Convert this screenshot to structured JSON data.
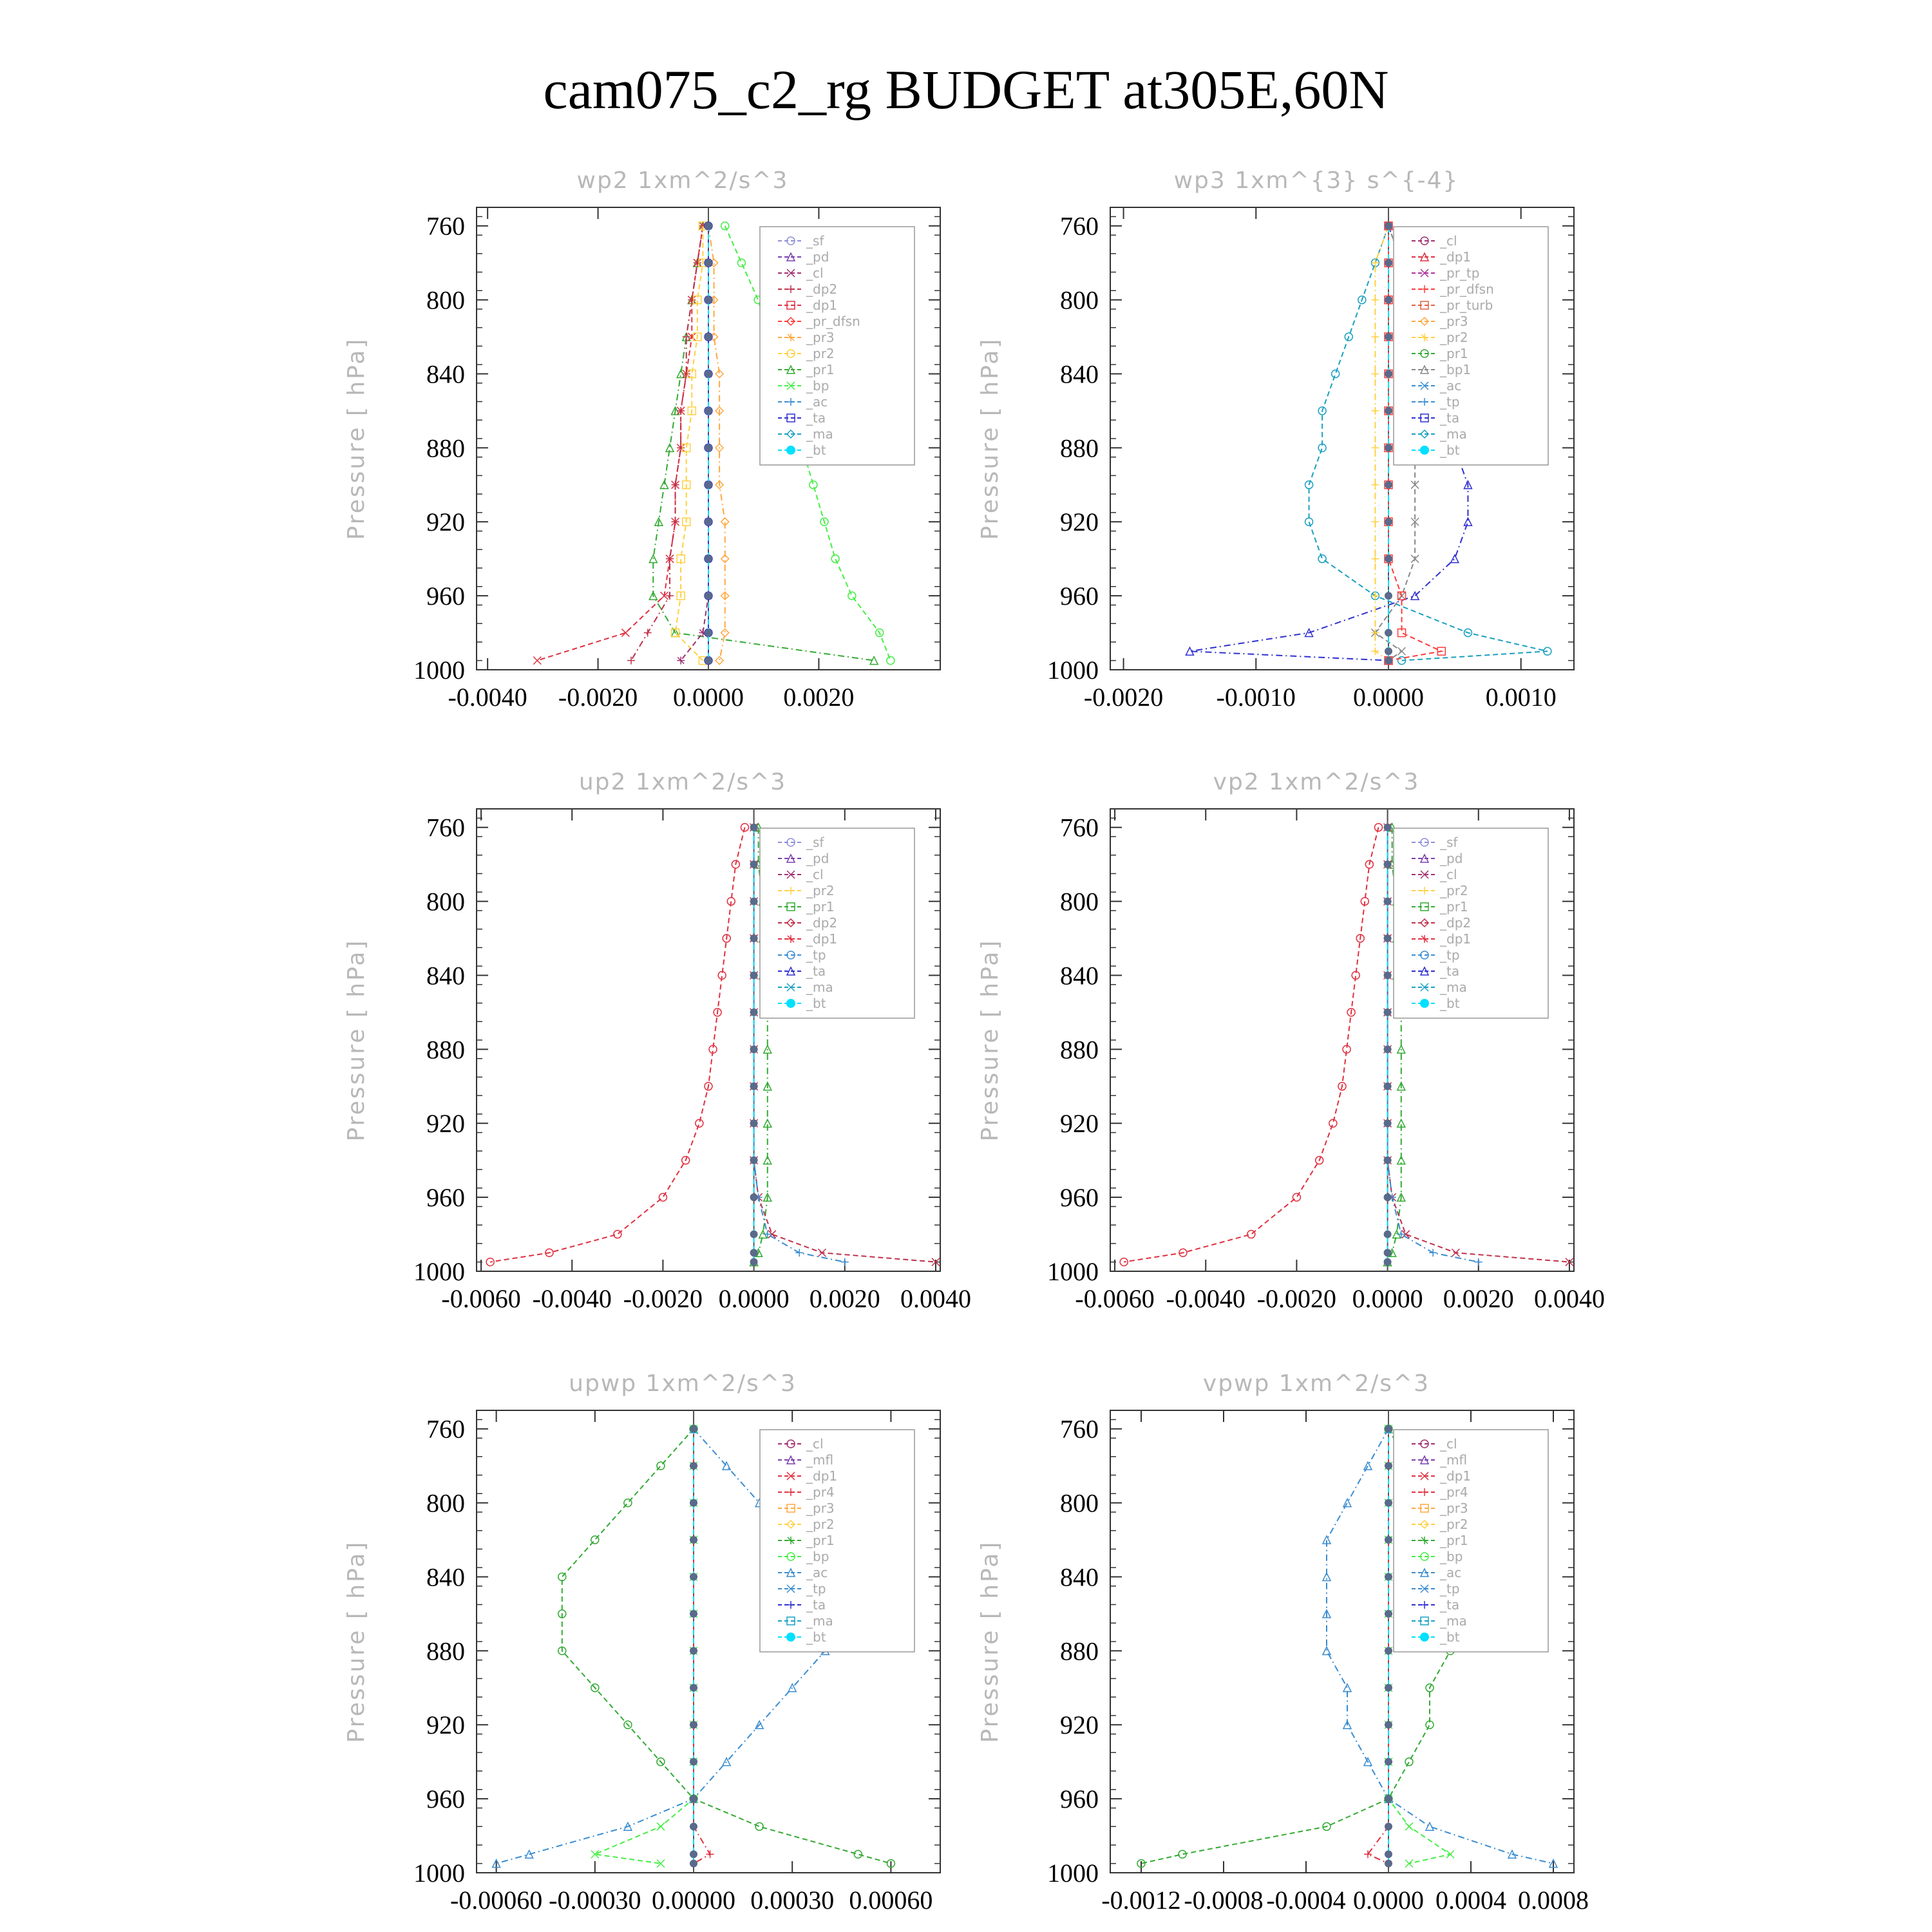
{
  "title": "cam075_c2_rg  BUDGET at305E,60N",
  "colors": {
    "_sf": "#8f8fd8",
    "_pd": "#7b3fb0",
    "_cl": "#a03070",
    "_dp2": "#c0304a",
    "_dp1": "#e03040",
    "_pr_dfsn": "#ff3b3b",
    "_pr3": "#ffa840",
    "_pr2": "#ffd040",
    "_pr1": "#33aa33",
    "_bp": "#44ee44",
    "_ac": "#3a8cd0",
    "_ta": "#3030d0",
    "_ma": "#1aa0c0",
    "_bt": "#00e0ff",
    "_pr_tp": "#b0309a",
    "_pr_turb": "#e06040",
    "_tp": "#3a8cd0",
    "_mfl": "#7b3fb0",
    "_pr4": "#e03040"
  },
  "chart_data": [
    {
      "type": "line",
      "title": "wp2   1xm^2/s^3",
      "ylabel": "Pressure [ hPa]",
      "ylim": [
        1000,
        750
      ],
      "yticks": [
        "760",
        "800",
        "840",
        "880",
        "920",
        "960",
        "1000"
      ],
      "xlim": [
        -0.0042,
        0.0042
      ],
      "xticks": [
        "-0.0040",
        "-0.0020",
        "0.0000",
        "0.0020"
      ],
      "xtick_values": [
        -0.004,
        -0.002,
        0.0,
        0.002
      ],
      "legend": [
        "_sf",
        "_pd",
        "_cl",
        "_dp2",
        "_dp1",
        "_pr_dfsn",
        "_pr3",
        "_pr2",
        "_pr1",
        "_bp",
        "_ac",
        "_ta",
        "_ma",
        "_bt"
      ],
      "legend_position": "top-right",
      "pressure": [
        760,
        780,
        800,
        820,
        840,
        860,
        880,
        900,
        920,
        940,
        960,
        980,
        995
      ],
      "series": [
        {
          "name": "_bp",
          "values": [
            0.0003,
            0.0006,
            0.0009,
            0.0011,
            0.0013,
            0.0015,
            0.0017,
            0.0019,
            0.0021,
            0.0023,
            0.0026,
            0.0031,
            0.0033
          ]
        },
        {
          "name": "_pr1",
          "values": [
            -0.0001,
            -0.0002,
            -0.0003,
            -0.0004,
            -0.0005,
            -0.0006,
            -0.0007,
            -0.0008,
            -0.0009,
            -0.001,
            -0.001,
            -0.0006,
            0.003
          ]
        },
        {
          "name": "_dp1",
          "values": [
            -0.0001,
            -0.0002,
            -0.0003,
            -0.0003,
            -0.0004,
            -0.0005,
            -0.0005,
            -0.0006,
            -0.0006,
            -0.0007,
            -0.0008,
            -0.0015,
            -0.0031
          ]
        },
        {
          "name": "_dp2",
          "values": [
            -0.0001,
            -0.0002,
            -0.0003,
            -0.0004,
            -0.0004,
            -0.0005,
            -0.0005,
            -0.0006,
            -0.0006,
            -0.0007,
            -0.0007,
            -0.0011,
            -0.0014
          ]
        },
        {
          "name": "_pr2",
          "values": [
            -0.0001,
            -0.0001,
            -0.0002,
            -0.0002,
            -0.0003,
            -0.0003,
            -0.0004,
            -0.0004,
            -0.0004,
            -0.0005,
            -0.0005,
            -0.0006,
            -0.0001
          ]
        },
        {
          "name": "_pr3",
          "values": [
            0.0,
            0.0001,
            0.0001,
            0.0001,
            0.0002,
            0.0002,
            0.0002,
            0.0002,
            0.0003,
            0.0003,
            0.0003,
            0.0003,
            0.0002
          ]
        },
        {
          "name": "_cl",
          "values": [
            0.0,
            0.0,
            0.0,
            0.0,
            0.0,
            0.0,
            0.0,
            0.0,
            0.0,
            0.0,
            0.0,
            -0.0001,
            -0.0005
          ]
        },
        {
          "name": "_ta",
          "values": [
            0.0,
            0.0,
            0.0,
            0.0,
            0.0,
            0.0,
            0.0,
            0.0,
            0.0,
            0.0,
            0.0,
            0.0,
            0.0
          ]
        },
        {
          "name": "_bt",
          "values": [
            0.0,
            0.0,
            0.0,
            0.0,
            0.0,
            0.0,
            0.0,
            0.0,
            0.0,
            0.0,
            0.0,
            0.0,
            0.0
          ]
        }
      ]
    },
    {
      "type": "line",
      "title": "wp3   1xm^{3} s^{-4}",
      "ylabel": "Pressure [ hPa]",
      "ylim": [
        1000,
        750
      ],
      "yticks": [
        "760",
        "800",
        "840",
        "880",
        "920",
        "960",
        "1000"
      ],
      "xlim": [
        -0.0021,
        0.0014
      ],
      "xticks": [
        "-0.0020",
        "-0.0010",
        "0.0000",
        "0.0010"
      ],
      "xtick_values": [
        -0.002,
        -0.001,
        0.0,
        0.001
      ],
      "legend": [
        "_cl",
        "_dp1",
        "_pr_tp",
        "_pr_dfsn",
        "_pr_turb",
        "_pr3",
        "_pr2",
        "_pr1",
        "_bp1",
        "_ac",
        "_tp",
        "_ta",
        "_ma",
        "_bt"
      ],
      "legend_position": "top-right",
      "pressure": [
        760,
        780,
        800,
        820,
        840,
        860,
        880,
        900,
        920,
        940,
        960,
        980,
        990,
        995
      ],
      "series": [
        {
          "name": "_ma",
          "values": [
            0.0,
            -0.0001,
            -0.0002,
            -0.0003,
            -0.0004,
            -0.0005,
            -0.0005,
            -0.0006,
            -0.0006,
            -0.0005,
            -0.0001,
            0.0006,
            0.0012,
            0.0001
          ]
        },
        {
          "name": "_ta",
          "values": [
            0.0,
            0.0001,
            0.0002,
            0.0003,
            0.0004,
            0.0005,
            0.0005,
            0.0006,
            0.0006,
            0.0005,
            0.0002,
            -0.0006,
            -0.0015,
            0.0
          ]
        },
        {
          "name": "_bp1",
          "values": [
            0.0,
            0.0001,
            0.0001,
            0.0001,
            0.0001,
            0.0002,
            0.0002,
            0.0002,
            0.0002,
            0.0002,
            0.0001,
            -0.0001,
            0.0001,
            0.0
          ]
        },
        {
          "name": "_pr2",
          "values": [
            0.0,
            -0.0001,
            -0.0001,
            -0.0001,
            -0.0001,
            -0.0001,
            -0.0001,
            -0.0001,
            -0.0001,
            -0.0001,
            -0.0001,
            -0.0001,
            -0.0001,
            0.0
          ]
        },
        {
          "name": "_pr_dfsn",
          "values": [
            0.0,
            0.0,
            0.0,
            0.0,
            0.0,
            0.0,
            0.0,
            0.0,
            0.0,
            0.0,
            0.0001,
            0.0001,
            0.0004,
            0.0
          ]
        },
        {
          "name": "_bt",
          "values": [
            0.0,
            0.0,
            0.0,
            0.0,
            0.0,
            0.0,
            0.0,
            0.0,
            0.0,
            0.0,
            0.0,
            0.0,
            0.0,
            0.0
          ]
        }
      ]
    },
    {
      "type": "line",
      "title": "up2   1xm^2/s^3",
      "ylabel": "Pressure [ hPa]",
      "ylim": [
        1000,
        750
      ],
      "yticks": [
        "760",
        "800",
        "840",
        "880",
        "920",
        "960",
        "1000"
      ],
      "xlim": [
        -0.0061,
        0.0041
      ],
      "xticks": [
        "-0.0060",
        "-0.0040",
        "-0.0020",
        "0.0000",
        "0.0020",
        "0.0040"
      ],
      "xtick_values": [
        -0.006,
        -0.004,
        -0.002,
        0.0,
        0.002,
        0.004
      ],
      "legend": [
        "_sf",
        "_pd",
        "_cl",
        "_pr2",
        "_pr1",
        "_dp2",
        "_dp1",
        "_tp",
        "_ta",
        "_ma",
        "_bt"
      ],
      "legend_position": "top-right",
      "pressure": [
        760,
        780,
        800,
        820,
        840,
        860,
        880,
        900,
        920,
        940,
        960,
        980,
        990,
        995
      ],
      "series": [
        {
          "name": "_dp1",
          "values": [
            -0.0002,
            -0.0004,
            -0.0005,
            -0.0006,
            -0.0007,
            -0.0008,
            -0.0009,
            -0.001,
            -0.0012,
            -0.0015,
            -0.002,
            -0.003,
            -0.0045,
            -0.0058
          ]
        },
        {
          "name": "_pr1",
          "values": [
            0.0001,
            0.0001,
            0.0002,
            0.0002,
            0.0002,
            0.0003,
            0.0003,
            0.0003,
            0.0003,
            0.0003,
            0.0003,
            0.0002,
            0.0001,
            0.0
          ]
        },
        {
          "name": "_dp2",
          "values": [
            0.0,
            0.0,
            0.0,
            0.0,
            0.0,
            0.0,
            0.0,
            0.0,
            0.0,
            0.0,
            0.0001,
            0.0004,
            0.0015,
            0.004
          ]
        },
        {
          "name": "_tp",
          "values": [
            0.0,
            0.0,
            0.0,
            0.0,
            0.0,
            0.0,
            0.0,
            0.0,
            0.0,
            0.0,
            0.0001,
            0.0003,
            0.001,
            0.002
          ]
        },
        {
          "name": "_bt",
          "values": [
            0.0,
            0.0,
            0.0,
            0.0,
            0.0,
            0.0,
            0.0,
            0.0,
            0.0,
            0.0,
            0.0,
            0.0,
            0.0,
            0.0
          ]
        }
      ]
    },
    {
      "type": "line",
      "title": "vp2   1xm^2/s^3",
      "ylabel": "Pressure [ hPa]",
      "ylim": [
        1000,
        750
      ],
      "yticks": [
        "760",
        "800",
        "840",
        "880",
        "920",
        "960",
        "1000"
      ],
      "xlim": [
        -0.0061,
        0.0041
      ],
      "xticks": [
        "-0.0060",
        "-0.0040",
        "-0.0020",
        "0.0000",
        "0.0020",
        "0.0040"
      ],
      "xtick_values": [
        -0.006,
        -0.004,
        -0.002,
        0.0,
        0.002,
        0.004
      ],
      "legend": [
        "_sf",
        "_pd",
        "_cl",
        "_pr2",
        "_pr1",
        "_dp2",
        "_dp1",
        "_tp",
        "_ta",
        "_ma",
        "_bt"
      ],
      "legend_position": "top-right",
      "pressure": [
        760,
        780,
        800,
        820,
        840,
        860,
        880,
        900,
        920,
        940,
        960,
        980,
        990,
        995
      ],
      "series": [
        {
          "name": "_dp1",
          "values": [
            -0.0002,
            -0.0004,
            -0.0005,
            -0.0006,
            -0.0007,
            -0.0008,
            -0.0009,
            -0.001,
            -0.0012,
            -0.0015,
            -0.002,
            -0.003,
            -0.0045,
            -0.0058
          ]
        },
        {
          "name": "_pr1",
          "values": [
            0.0001,
            0.0001,
            0.0002,
            0.0002,
            0.0002,
            0.0003,
            0.0003,
            0.0003,
            0.0003,
            0.0003,
            0.0003,
            0.0002,
            0.0001,
            0.0
          ]
        },
        {
          "name": "_dp2",
          "values": [
            0.0,
            0.0,
            0.0,
            0.0,
            0.0,
            0.0,
            0.0,
            0.0,
            0.0,
            0.0,
            0.0001,
            0.0004,
            0.0015,
            0.004
          ]
        },
        {
          "name": "_tp",
          "values": [
            0.0,
            0.0,
            0.0,
            0.0,
            0.0,
            0.0,
            0.0,
            0.0,
            0.0,
            0.0,
            0.0001,
            0.0003,
            0.001,
            0.002
          ]
        },
        {
          "name": "_bt",
          "values": [
            0.0,
            0.0,
            0.0,
            0.0,
            0.0,
            0.0,
            0.0,
            0.0,
            0.0,
            0.0,
            0.0,
            0.0,
            0.0,
            0.0
          ]
        }
      ]
    },
    {
      "type": "line",
      "title": "upwp   1xm^2/s^3",
      "ylabel": "Pressure [ hPa]",
      "ylim": [
        1000,
        750
      ],
      "yticks": [
        "760",
        "800",
        "840",
        "880",
        "920",
        "960",
        "1000"
      ],
      "xlim": [
        -0.00066,
        0.00075
      ],
      "xticks": [
        "-0.00060",
        "-0.00030",
        "0.00000",
        "0.00030",
        "0.00060"
      ],
      "xtick_values": [
        -0.0006,
        -0.0003,
        0.0,
        0.0003,
        0.0006
      ],
      "legend": [
        "_cl",
        "_mfl",
        "_dp1",
        "_pr4",
        "_pr3",
        "_pr2",
        "_pr1",
        "_bp",
        "_ac",
        "_tp",
        "_ta",
        "_ma",
        "_bt"
      ],
      "legend_position": "top-right",
      "pressure": [
        760,
        780,
        800,
        820,
        840,
        860,
        880,
        900,
        920,
        940,
        960,
        975,
        990,
        995
      ],
      "series": [
        {
          "name": "_pr1",
          "values": [
            0.0,
            -0.0001,
            -0.0002,
            -0.0003,
            -0.0004,
            -0.0004,
            -0.0004,
            -0.0003,
            -0.0002,
            -0.0001,
            0.0,
            0.0002,
            0.0005,
            0.0006
          ]
        },
        {
          "name": "_tp",
          "values": [
            0.0,
            0.0001,
            0.0002,
            0.0003,
            0.0004,
            0.0004,
            0.0004,
            0.0003,
            0.0002,
            0.0001,
            0.0,
            -0.0002,
            -0.0005,
            -0.0006
          ]
        },
        {
          "name": "_bp",
          "values": [
            0.0,
            0.0,
            0.0,
            0.0,
            0.0,
            0.0,
            0.0,
            0.0,
            0.0,
            0.0,
            0.0,
            -0.0001,
            -0.0003,
            -0.0001
          ]
        },
        {
          "name": "_dp1",
          "values": [
            0.0,
            0.0,
            0.0,
            0.0,
            0.0,
            0.0,
            0.0,
            0.0,
            0.0,
            0.0,
            0.0,
            0.0,
            5e-05,
            0.0
          ]
        },
        {
          "name": "_bt",
          "values": [
            0.0,
            0.0,
            0.0,
            0.0,
            0.0,
            0.0,
            0.0,
            0.0,
            0.0,
            0.0,
            0.0,
            0.0,
            0.0,
            0.0
          ]
        }
      ]
    },
    {
      "type": "line",
      "title": "vpwp   1xm^2/s^3",
      "ylabel": "Pressure [ hPa]",
      "ylim": [
        1000,
        750
      ],
      "yticks": [
        "760",
        "800",
        "840",
        "880",
        "920",
        "960",
        "1000"
      ],
      "xlim": [
        -0.00135,
        0.0009
      ],
      "xticks": [
        "-0.0012",
        "-0.0008",
        "-0.0004",
        "0.0000",
        "0.0004",
        "0.0008"
      ],
      "xtick_values": [
        -0.0012,
        -0.0008,
        -0.0004,
        0.0,
        0.0004,
        0.0008
      ],
      "legend": [
        "_cl",
        "_mfl",
        "_dp1",
        "_pr4",
        "_pr3",
        "_pr2",
        "_pr1",
        "_bp",
        "_ac",
        "_tp",
        "_ta",
        "_ma",
        "_bt"
      ],
      "legend_position": "top-right",
      "pressure": [
        760,
        780,
        800,
        820,
        840,
        860,
        880,
        900,
        920,
        940,
        960,
        975,
        990,
        995
      ],
      "series": [
        {
          "name": "_pr1",
          "values": [
            0.0,
            0.0001,
            0.0002,
            0.0003,
            0.0003,
            0.0003,
            0.0003,
            0.0002,
            0.0002,
            0.0001,
            0.0,
            -0.0003,
            -0.001,
            -0.0012
          ]
        },
        {
          "name": "_tp",
          "values": [
            0.0,
            -0.0001,
            -0.0002,
            -0.0003,
            -0.0003,
            -0.0003,
            -0.0003,
            -0.0002,
            -0.0002,
            -0.0001,
            0.0,
            0.0002,
            0.0006,
            0.0008
          ]
        },
        {
          "name": "_bp",
          "values": [
            0.0,
            0.0,
            0.0,
            0.0,
            0.0,
            0.0,
            0.0,
            0.0,
            0.0,
            0.0,
            0.0,
            0.0001,
            0.0003,
            0.0001
          ]
        },
        {
          "name": "_dp1",
          "values": [
            0.0,
            0.0,
            0.0,
            0.0,
            0.0,
            0.0,
            0.0,
            0.0,
            0.0,
            0.0,
            0.0,
            0.0,
            -0.0001,
            0.0
          ]
        },
        {
          "name": "_bt",
          "values": [
            0.0,
            0.0,
            0.0,
            0.0,
            0.0,
            0.0,
            0.0,
            0.0,
            0.0,
            0.0,
            0.0,
            0.0,
            0.0,
            0.0
          ]
        }
      ]
    }
  ]
}
